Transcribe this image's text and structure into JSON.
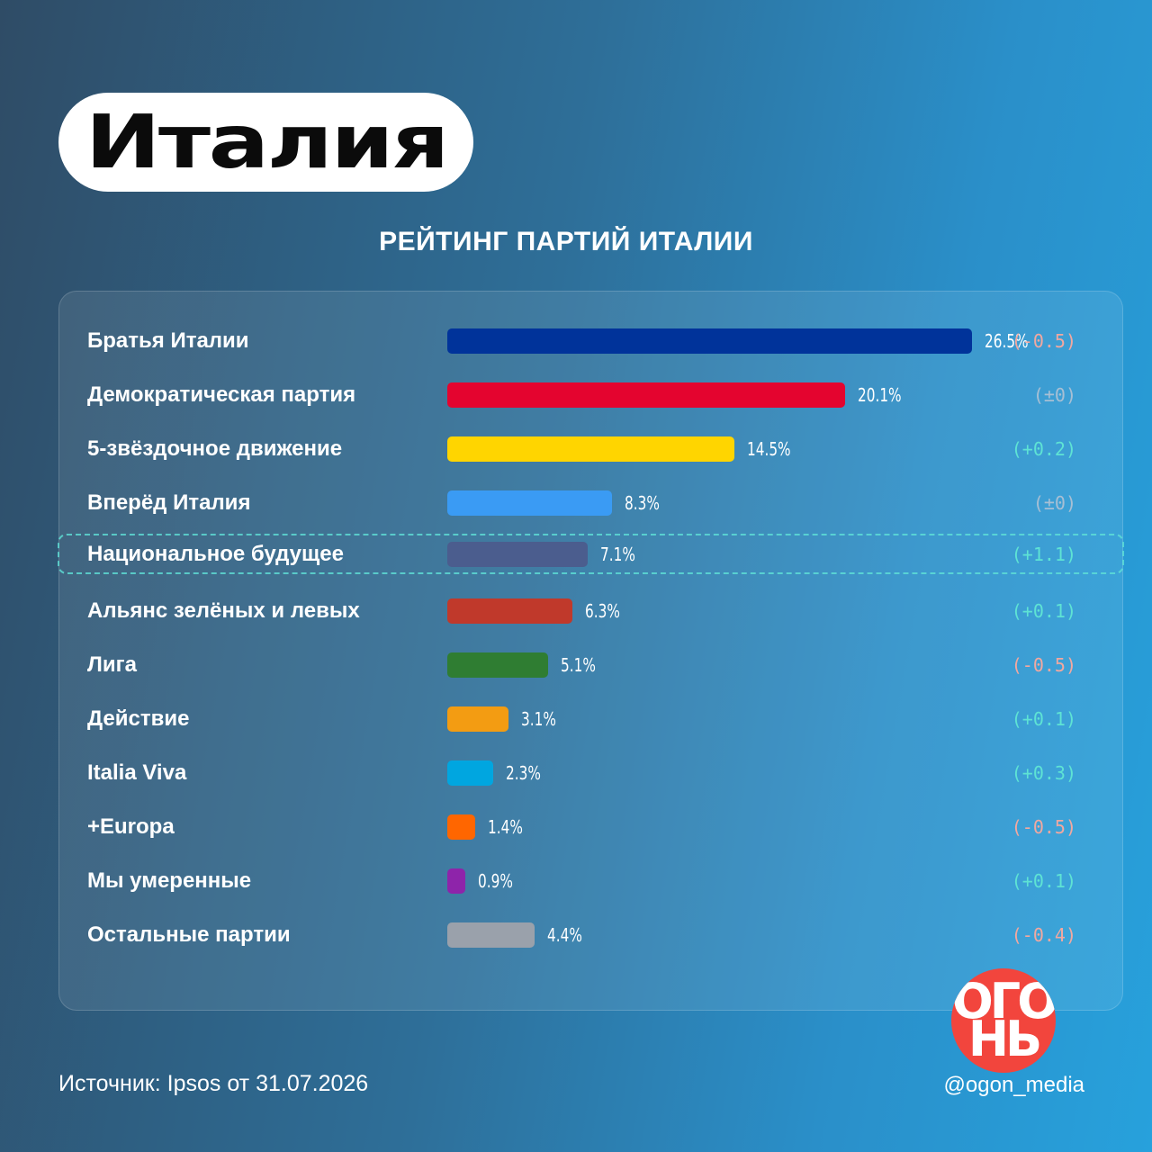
{
  "header": {
    "country": "Италия"
  },
  "colors": {
    "up": "#5ee3d4",
    "down": "#f2a8a0",
    "zero": "#a7bfd4",
    "highlight_border": "#5fe1d7"
  },
  "chart_data": {
    "type": "bar",
    "orientation": "horizontal",
    "title": "РЕЙТИНГ ПАРТИЙ ИТАЛИИ",
    "xlim": [
      0,
      26.5
    ],
    "grid": false,
    "rows": [
      {
        "label": "Братья Италии",
        "value": 26.5,
        "value_label": "26.5%",
        "change": "(-0.5)",
        "trend": "down",
        "color": "#00339a"
      },
      {
        "label": "Демократическая партия",
        "value": 20.1,
        "value_label": "20.1%",
        "change": "(±0)",
        "trend": "zero",
        "color": "#e4042f"
      },
      {
        "label": "5-звёздочное движение",
        "value": 14.5,
        "value_label": "14.5%",
        "change": "(+0.2)",
        "trend": "up",
        "color": "#ffd500"
      },
      {
        "label": "Вперёд Италия",
        "value": 8.3,
        "value_label": "8.3%",
        "change": "(±0)",
        "trend": "zero",
        "color": "#3a9bf4"
      },
      {
        "label": "Национальное будущее",
        "value": 7.1,
        "value_label": "7.1%",
        "change": "(+1.1)",
        "trend": "up",
        "color": "#4b5d8e",
        "highlighted": true
      },
      {
        "label": "Альянс зелёных и левых",
        "value": 6.3,
        "value_label": "6.3%",
        "change": "(+0.1)",
        "trend": "up",
        "color": "#c0392b"
      },
      {
        "label": "Лига",
        "value": 5.1,
        "value_label": "5.1%",
        "change": "(-0.5)",
        "trend": "down",
        "color": "#2f7d32"
      },
      {
        "label": "Действие",
        "value": 3.1,
        "value_label": "3.1%",
        "change": "(+0.1)",
        "trend": "up",
        "color": "#f39c12"
      },
      {
        "label": "Italia Viva",
        "value": 2.3,
        "value_label": "2.3%",
        "change": "(+0.3)",
        "trend": "up",
        "color": "#00a6e0"
      },
      {
        "label": "+Europa",
        "value": 1.4,
        "value_label": "1.4%",
        "change": "(-0.5)",
        "trend": "down",
        "color": "#ff6600"
      },
      {
        "label": "Мы умеренные",
        "value": 0.9,
        "value_label": "0.9%",
        "change": "(+0.1)",
        "trend": "up",
        "color": "#8e24aa"
      },
      {
        "label": "Остальные партии",
        "value": 4.4,
        "value_label": "4.4%",
        "change": "(-0.4)",
        "trend": "down",
        "color": "#9aa1ab"
      }
    ]
  },
  "footer": {
    "source": "Источник: Ipsos от 31.07.2026",
    "handle": "@ogon_media"
  },
  "logo": {
    "line1": "ОГО",
    "line2": "НЬ",
    "color": "#f2453d"
  }
}
